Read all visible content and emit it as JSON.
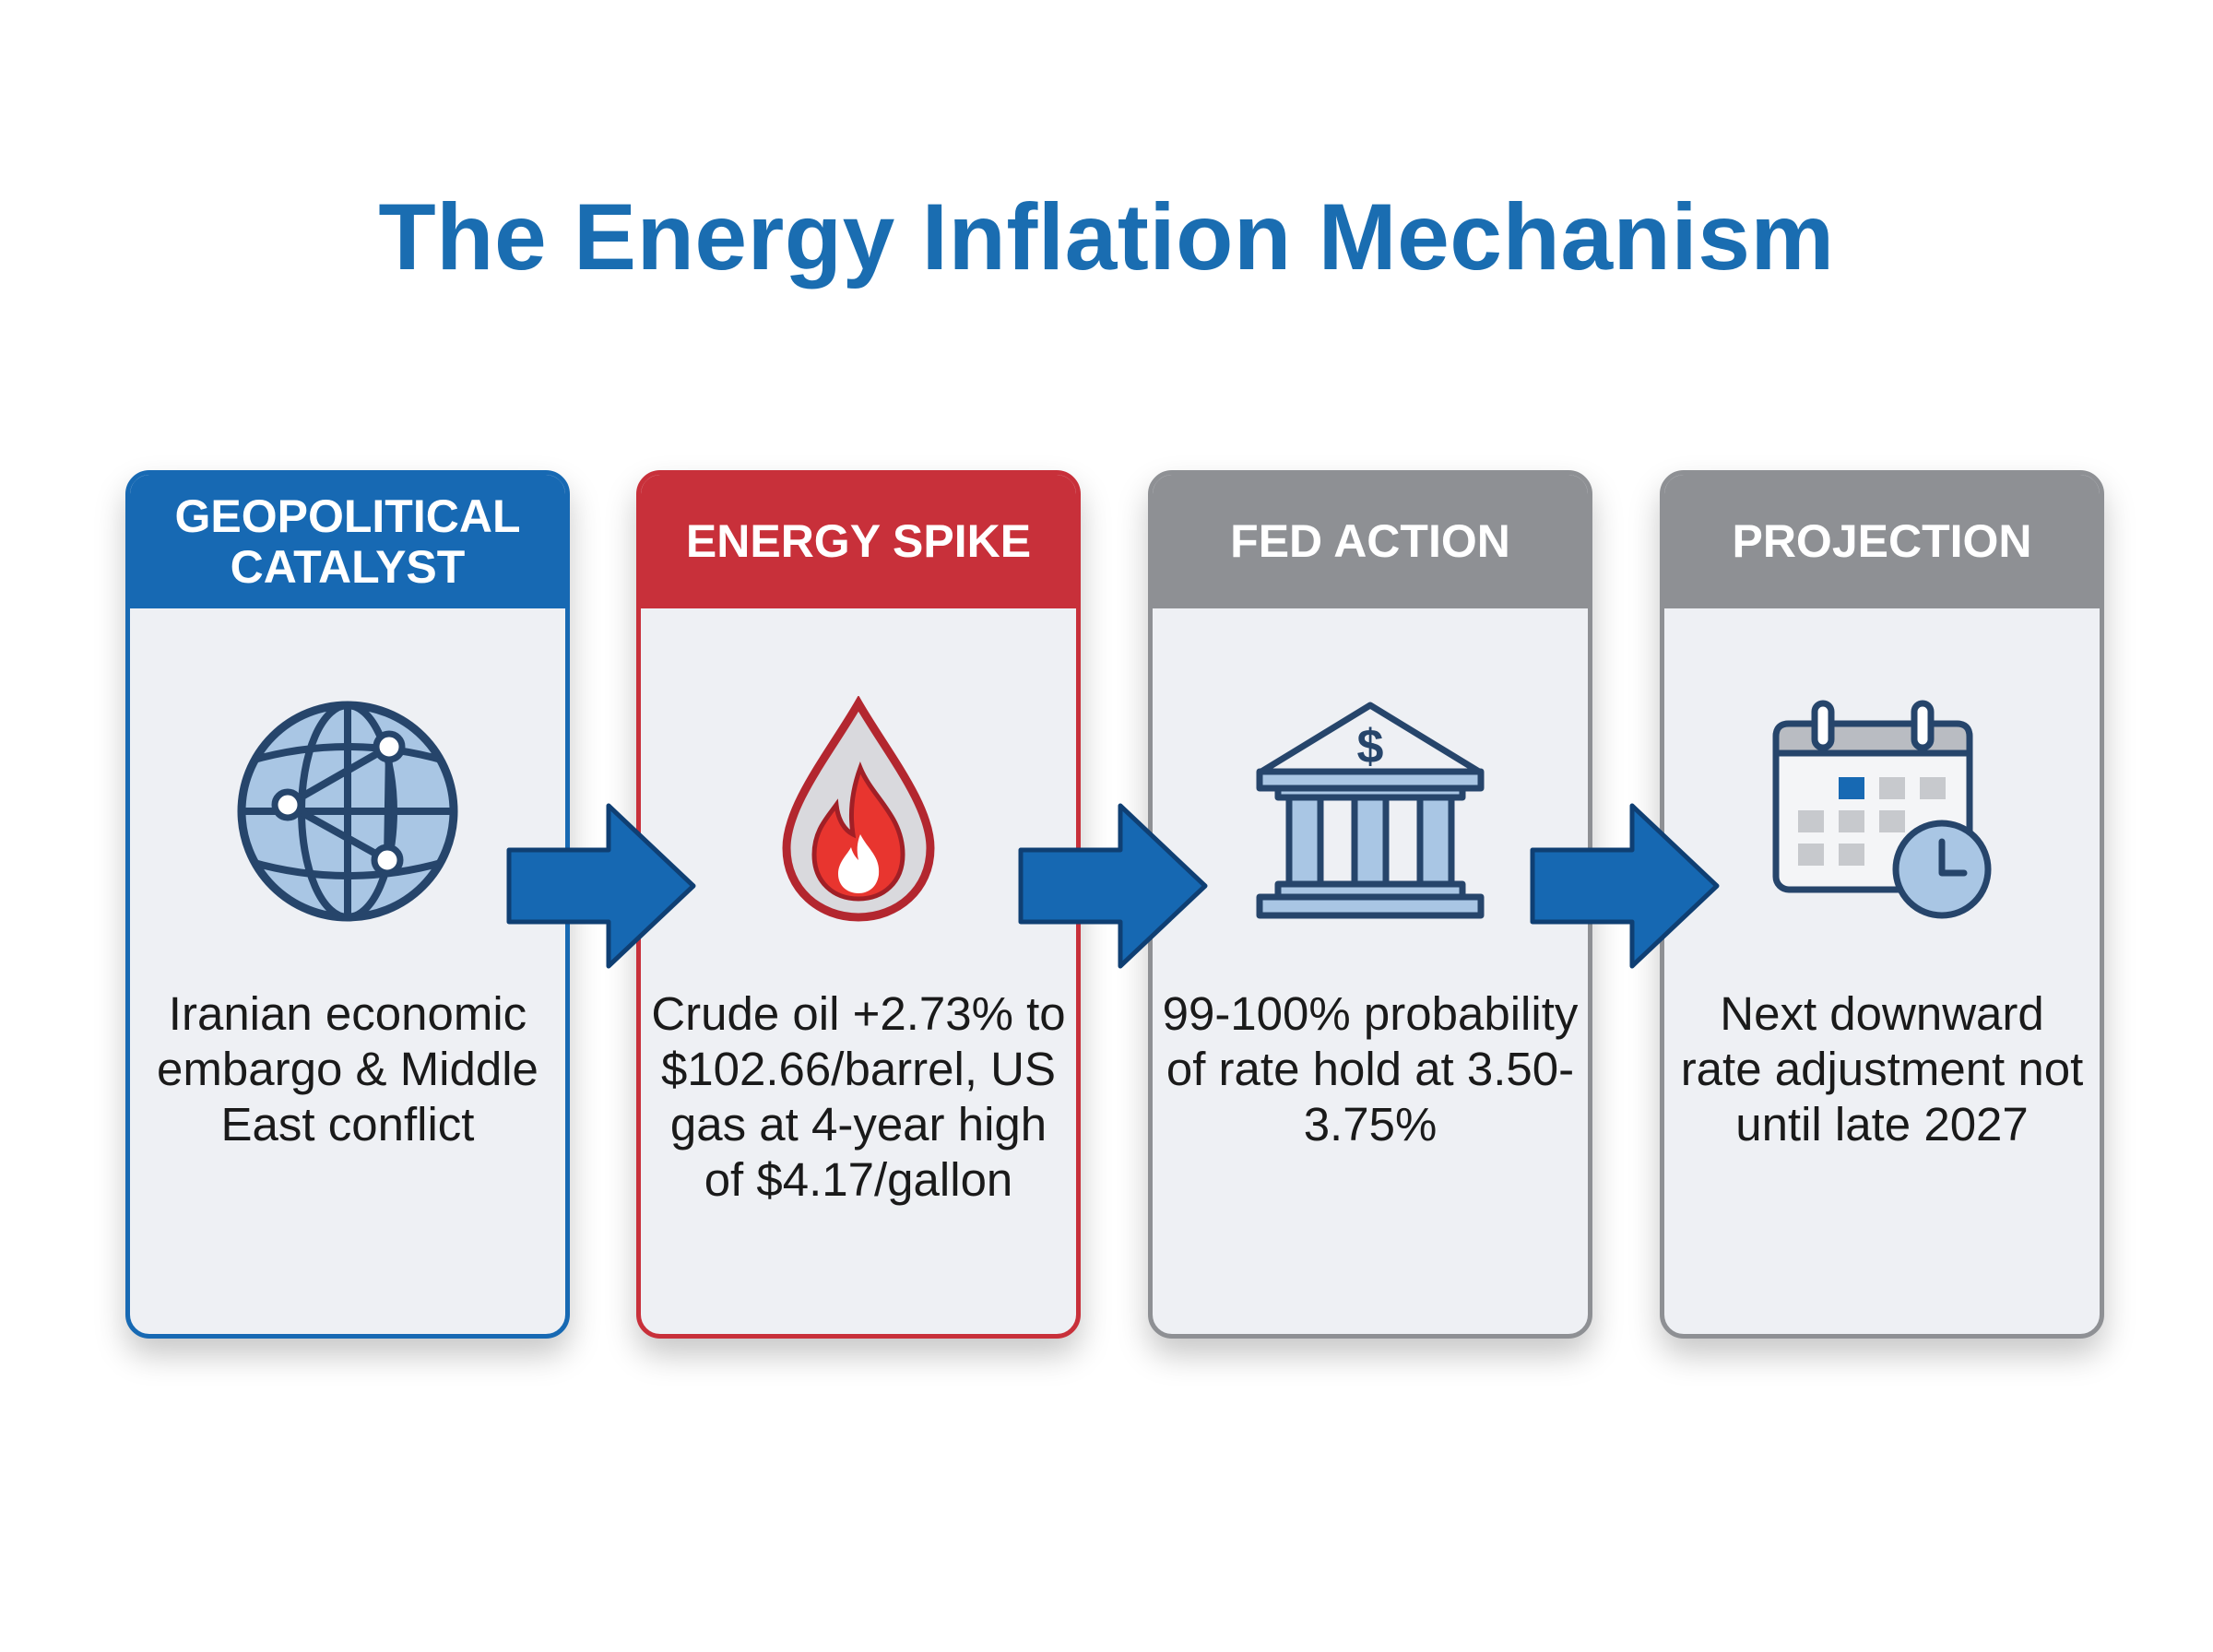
{
  "title": "The Energy Inflation Mechanism",
  "colors": {
    "title": "#1a6db1",
    "blue": "#1769b3",
    "red": "#c8303a",
    "gray": "#8e9094",
    "card_bg": "#eef0f4",
    "arrow": "#1668b2",
    "icon_outline": "#26456b",
    "icon_fill": "#a9c6e4"
  },
  "cards": [
    {
      "id": "geopolitical-catalyst",
      "header_lines": [
        "GEOPOLITICAL",
        "CATALYST"
      ],
      "icon": "globe-network-icon",
      "text": "Iranian economic embargo & Middle East conflict",
      "theme": "blue"
    },
    {
      "id": "energy-spike",
      "header_lines": [
        "ENERGY SPIKE"
      ],
      "icon": "oil-drop-flame-icon",
      "text": "Crude oil +2.73% to $102.66/barrel, US gas at 4-year high of $4.17/gallon",
      "theme": "red"
    },
    {
      "id": "fed-action",
      "header_lines": [
        "FED ACTION"
      ],
      "icon": "bank-building-icon",
      "text": "99-100% probability of rate hold at 3.50-3.75%",
      "theme": "gray"
    },
    {
      "id": "projection",
      "header_lines": [
        "PROJECTION"
      ],
      "icon": "calendar-clock-icon",
      "text": "Next downward rate adjustment not until late 2027",
      "theme": "gray"
    }
  ]
}
